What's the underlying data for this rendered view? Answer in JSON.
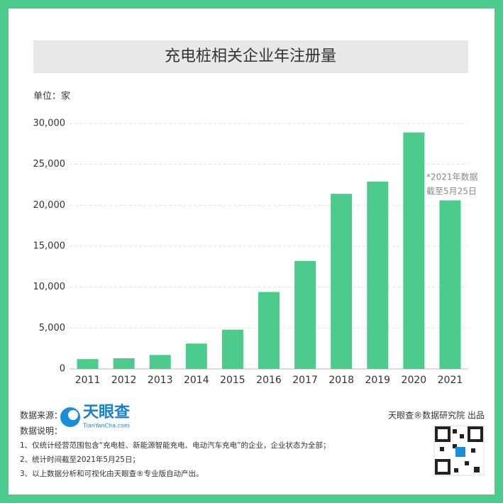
{
  "chart_data": {
    "type": "bar",
    "title": "充电桩相关企业年注册量",
    "unit_label": "单位：家",
    "categories": [
      "2011",
      "2012",
      "2013",
      "2014",
      "2015",
      "2016",
      "2017",
      "2018",
      "2019",
      "2020",
      "2021"
    ],
    "values": [
      1200,
      1300,
      1700,
      3100,
      4800,
      9400,
      13200,
      21400,
      22900,
      28900,
      20600
    ],
    "color": "#4dcb8c",
    "ylim": [
      0,
      30000
    ],
    "yticks": [
      0,
      {
        "value": 5000,
        "label": "5,000"
      },
      {
        "value": 10000,
        "label": "10,000"
      },
      {
        "value": 15000,
        "label": "15,000"
      },
      {
        "value": 20000,
        "label": "20,000"
      },
      {
        "value": 25000,
        "label": "25,000"
      },
      {
        "value": 30000,
        "label": "30,000"
      }
    ],
    "grid": true,
    "annotation": [
      "*2021年数据",
      "截至5月25日"
    ]
  },
  "footer": {
    "source_label": "数据来源：",
    "logo_text": "天眼查",
    "logo_sub": "TianYanCha.com",
    "notes_label": "数据说明：",
    "notes": [
      "1、仅统计经营范围包含“充电桩、新能源智能充电、电动汽车充电”的企业，企业状态为全部；",
      "2、统计时间截至2021年5月25日；",
      "3、以上数据分析和可视化由天眼查®专业版自动产出。"
    ],
    "credit": "天眼查®数据研究院 出品"
  }
}
